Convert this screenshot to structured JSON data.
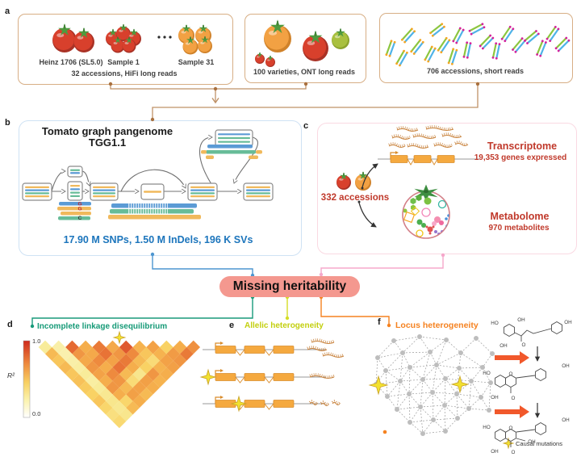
{
  "colors": {
    "tan": "#BF9268",
    "tanDot": "#A9703E",
    "blue": "#4D96D0",
    "pinkline": "#F5A8CB",
    "teal": "#189A7A",
    "yellow": "#D5DD26",
    "orange": "#F58220",
    "pillBg": "#F4988F",
    "stripeOrange": "#F0B95C",
    "stripeBlue": "#5B9BD5",
    "stripeGreen": "#67BC98",
    "readBrown": "#C8823C",
    "exonOrange": "#F5A93F",
    "exonBorder": "#D98C2B",
    "tomatoRed": "#D8402C",
    "tomatoRedDark": "#A93226",
    "tomatoOrange": "#F2A143",
    "tomatoOrangeDark": "#D0822A",
    "tomatoGreen": "#A9C03F",
    "tomatoGreenDark": "#8CA32E",
    "statBlue": "#1C75BC",
    "titleGreen": "#169A77",
    "titleYellow": "#C3CF0E",
    "titleOrange": "#F58220",
    "netGray": "#BDBDBD",
    "edgeGray": "#9E9E9E",
    "bigArrow": "#F1582B"
  },
  "panels": {
    "a": {
      "letter": "a",
      "box1": {
        "items": [
          "Heinz 1706 (SL5.0)",
          "Sample 1",
          "Sample 31"
        ],
        "caption": "32 accessions, HiFi long reads"
      },
      "box2": {
        "caption": "100 varieties, ONT long reads"
      },
      "box3": {
        "caption": "706 accessions, short reads"
      }
    },
    "b": {
      "letter": "b",
      "title1": "Tomato graph pangenome",
      "title2": "TGG1.1",
      "stats": "17.90 M SNPs, 1.50 M InDels, 196 K SVs",
      "snp_letters": [
        "G",
        "G",
        "C"
      ]
    },
    "c": {
      "letter": "c",
      "accessions": "332 accessions",
      "transcriptome": {
        "title": "Transcriptome",
        "subtitle": "19,353 genes expressed"
      },
      "metabolome": {
        "title": "Metabolome",
        "subtitle": "970 metabolites"
      }
    },
    "center": {
      "pill_label": "Missing heritability"
    },
    "d": {
      "letter": "d",
      "title": "Incomplete linkage disequilibrium",
      "colorbar": {
        "max": "1.0",
        "min": "0.0",
        "label": "R²"
      },
      "heatmap_matrix": [
        [
          0.25,
          0.2,
          0.85,
          0.6,
          0.8,
          0.62,
          0.9,
          0.58,
          0.65,
          0.45,
          0.6,
          0.72
        ],
        [
          0.55,
          0.18,
          0.7,
          0.62,
          0.82,
          0.7,
          0.75,
          0.5,
          0.58,
          0.68,
          0.8
        ],
        [
          0.5,
          0.2,
          0.62,
          0.75,
          0.65,
          0.8,
          0.55,
          0.38,
          0.65,
          0.7
        ],
        [
          0.55,
          0.22,
          0.7,
          0.6,
          0.82,
          0.6,
          0.45,
          0.58,
          0.66
        ],
        [
          0.5,
          0.25,
          0.65,
          0.75,
          0.55,
          0.3,
          0.7,
          0.6
        ],
        [
          0.52,
          0.22,
          0.6,
          0.7,
          0.38,
          0.66,
          0.58
        ],
        [
          0.48,
          0.25,
          0.7,
          0.55,
          0.65,
          0.6
        ],
        [
          0.45,
          0.28,
          0.6,
          0.66,
          0.55
        ],
        [
          0.5,
          0.3,
          0.42,
          0.6
        ],
        [
          0.42,
          0.28,
          0.55
        ],
        [
          0.35,
          0.3
        ],
        [
          0.4
        ]
      ]
    },
    "e": {
      "letter": "e",
      "title": "Allelic heterogeneity"
    },
    "f": {
      "letter": "f",
      "title": "Locus heterogeneity",
      "legend": "Causal mutations",
      "structures": [
        {
          "labels": [
            "HO",
            "OH",
            "OH",
            "OH",
            "O"
          ]
        },
        {
          "labels": [
            "HO",
            "O",
            "OH",
            "OH",
            "O"
          ]
        },
        {
          "labels": [
            "HO",
            "O",
            "OH",
            "OH",
            "OH",
            "O"
          ]
        }
      ]
    }
  }
}
